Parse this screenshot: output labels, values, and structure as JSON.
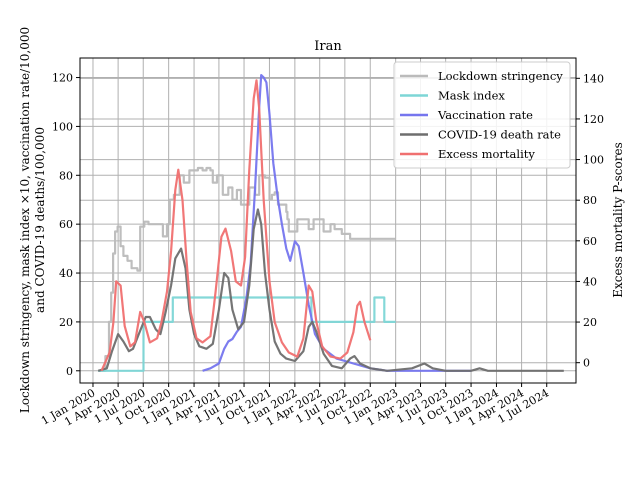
{
  "chart_data": {
    "type": "line",
    "title": "Iran",
    "ylabel_lines": [
      "Lockdown stringency, mask index ×10, vaccination rate/10,000",
      "and COVID-19 deaths/100,000"
    ],
    "y2label": "Excess mortality P-scores",
    "xlabel": "",
    "grid": true,
    "legend_position": "top-right",
    "xlim": [
      "2019-11-15",
      "2024-10-15"
    ],
    "ylim": [
      -5,
      128
    ],
    "y2lim": [
      -10,
      150
    ],
    "x_ticks": [
      "2020-01-01",
      "2020-04-01",
      "2020-07-01",
      "2020-10-01",
      "2021-01-01",
      "2021-04-01",
      "2021-07-01",
      "2021-10-01",
      "2022-01-01",
      "2022-04-01",
      "2022-07-01",
      "2022-10-01",
      "2023-01-01",
      "2023-04-01",
      "2023-07-01",
      "2023-10-01",
      "2024-01-01",
      "2024-04-01",
      "2024-07-01"
    ],
    "x_tick_labels": [
      "1 Jan 2020",
      "1 Apr 2020",
      "1 Jul 2020",
      "1 Oct 2020",
      "1 Jan 2021",
      "1 Apr 2021",
      "1 Jul 2021",
      "1 Oct 2021",
      "1 Jan 2022",
      "1 Apr 2022",
      "1 Jul 2022",
      "1 Oct 2022",
      "1 Jan 2023",
      "1 Apr 2023",
      "1 Jul 2023",
      "1 Oct 2023",
      "1 Jan 2024",
      "1 Apr 2024",
      "1 Jul 2024"
    ],
    "y_ticks": [
      0,
      20,
      40,
      60,
      80,
      100,
      120
    ],
    "y2_ticks": [
      0,
      20,
      40,
      60,
      80,
      100,
      120,
      140
    ],
    "series": [
      {
        "name": "Lockdown stringency",
        "color": "#bbbbbb",
        "axis": "left",
        "step": true,
        "points": [
          [
            "2020-01-20",
            0
          ],
          [
            "2020-02-15",
            6
          ],
          [
            "2020-02-28",
            20
          ],
          [
            "2020-03-07",
            32
          ],
          [
            "2020-03-14",
            48
          ],
          [
            "2020-03-21",
            57
          ],
          [
            "2020-03-30",
            59
          ],
          [
            "2020-04-10",
            51
          ],
          [
            "2020-04-20",
            47
          ],
          [
            "2020-05-05",
            45
          ],
          [
            "2020-05-20",
            42
          ],
          [
            "2020-06-10",
            41
          ],
          [
            "2020-06-20",
            59
          ],
          [
            "2020-07-05",
            61
          ],
          [
            "2020-07-20",
            60
          ],
          [
            "2020-08-20",
            60
          ],
          [
            "2020-09-10",
            55
          ],
          [
            "2020-09-25",
            60
          ],
          [
            "2020-10-05",
            70
          ],
          [
            "2020-10-20",
            72
          ],
          [
            "2020-11-10",
            80
          ],
          [
            "2020-11-25",
            77
          ],
          [
            "2020-12-15",
            82
          ],
          [
            "2021-01-15",
            83
          ],
          [
            "2021-02-01",
            82
          ],
          [
            "2021-02-15",
            83
          ],
          [
            "2021-03-01",
            82
          ],
          [
            "2021-03-10",
            77
          ],
          [
            "2021-03-25",
            80
          ],
          [
            "2021-04-15",
            72
          ],
          [
            "2021-05-05",
            75
          ],
          [
            "2021-05-20",
            70
          ],
          [
            "2021-06-05",
            74
          ],
          [
            "2021-06-20",
            68
          ],
          [
            "2021-07-20",
            75
          ],
          [
            "2021-08-10",
            72
          ],
          [
            "2021-08-25",
            80
          ],
          [
            "2021-09-15",
            79
          ],
          [
            "2021-10-01",
            70
          ],
          [
            "2021-10-10",
            72
          ],
          [
            "2021-10-20",
            73
          ],
          [
            "2021-11-01",
            68
          ],
          [
            "2021-12-01",
            65
          ],
          [
            "2021-12-05",
            62
          ],
          [
            "2021-12-10",
            57
          ],
          [
            "2022-01-10",
            62
          ],
          [
            "2022-02-20",
            58
          ],
          [
            "2022-03-10",
            62
          ],
          [
            "2022-04-15",
            57
          ],
          [
            "2022-05-10",
            60
          ],
          [
            "2022-05-25",
            58
          ],
          [
            "2022-06-20",
            56
          ],
          [
            "2022-07-20",
            54
          ],
          [
            "2023-01-01",
            54
          ]
        ]
      },
      {
        "name": "Mask index",
        "color": "#7dd6d6",
        "axis": "left",
        "step": true,
        "points": [
          [
            "2020-01-20",
            0
          ],
          [
            "2020-07-01",
            0
          ],
          [
            "2020-07-02",
            20
          ],
          [
            "2020-10-15",
            20
          ],
          [
            "2020-10-16",
            30
          ],
          [
            "2022-03-01",
            30
          ],
          [
            "2022-03-02",
            20
          ],
          [
            "2022-10-15",
            20
          ],
          [
            "2022-10-16",
            30
          ],
          [
            "2022-11-20",
            30
          ],
          [
            "2022-11-21",
            20
          ],
          [
            "2023-01-01",
            20
          ]
        ]
      },
      {
        "name": "Vaccination rate",
        "color": "#7575ee",
        "axis": "left",
        "step": false,
        "points": [
          [
            "2021-02-01",
            0
          ],
          [
            "2021-03-01",
            1
          ],
          [
            "2021-04-01",
            3
          ],
          [
            "2021-04-20",
            9
          ],
          [
            "2021-05-05",
            12
          ],
          [
            "2021-05-20",
            13
          ],
          [
            "2021-06-05",
            16
          ],
          [
            "2021-06-20",
            18
          ],
          [
            "2021-07-10",
            30
          ],
          [
            "2021-07-25",
            44
          ],
          [
            "2021-08-10",
            75
          ],
          [
            "2021-08-25",
            108
          ],
          [
            "2021-09-01",
            121
          ],
          [
            "2021-09-10",
            120
          ],
          [
            "2021-09-20",
            118
          ],
          [
            "2021-10-01",
            105
          ],
          [
            "2021-10-15",
            85
          ],
          [
            "2021-11-01",
            70
          ],
          [
            "2021-11-15",
            60
          ],
          [
            "2021-12-01",
            50
          ],
          [
            "2021-12-15",
            45
          ],
          [
            "2022-01-01",
            53
          ],
          [
            "2022-01-15",
            51
          ],
          [
            "2022-02-01",
            40
          ],
          [
            "2022-02-20",
            27
          ],
          [
            "2022-03-15",
            15
          ],
          [
            "2022-04-15",
            9
          ],
          [
            "2022-06-01",
            5
          ],
          [
            "2022-08-01",
            3
          ],
          [
            "2022-10-01",
            1
          ],
          [
            "2022-12-01",
            0
          ],
          [
            "2023-06-01",
            0
          ],
          [
            "2023-10-01",
            0
          ]
        ]
      },
      {
        "name": "COVID-19 death rate",
        "color": "#6e6e6e",
        "axis": "left",
        "step": false,
        "points": [
          [
            "2020-01-20",
            0
          ],
          [
            "2020-02-20",
            1
          ],
          [
            "2020-03-10",
            8
          ],
          [
            "2020-04-01",
            15
          ],
          [
            "2020-04-20",
            12
          ],
          [
            "2020-05-10",
            8
          ],
          [
            "2020-05-25",
            9
          ],
          [
            "2020-06-15",
            15
          ],
          [
            "2020-07-10",
            22
          ],
          [
            "2020-07-25",
            22
          ],
          [
            "2020-08-15",
            17
          ],
          [
            "2020-09-01",
            15
          ],
          [
            "2020-09-20",
            24
          ],
          [
            "2020-10-10",
            35
          ],
          [
            "2020-10-25",
            46
          ],
          [
            "2020-11-15",
            50
          ],
          [
            "2020-12-01",
            42
          ],
          [
            "2020-12-15",
            25
          ],
          [
            "2021-01-01",
            15
          ],
          [
            "2021-01-20",
            10
          ],
          [
            "2021-02-15",
            9
          ],
          [
            "2021-03-10",
            11
          ],
          [
            "2021-04-01",
            25
          ],
          [
            "2021-04-20",
            40
          ],
          [
            "2021-05-05",
            38
          ],
          [
            "2021-05-20",
            25
          ],
          [
            "2021-06-10",
            17
          ],
          [
            "2021-07-01",
            20
          ],
          [
            "2021-07-20",
            35
          ],
          [
            "2021-08-05",
            58
          ],
          [
            "2021-08-20",
            66
          ],
          [
            "2021-09-01",
            60
          ],
          [
            "2021-09-15",
            40
          ],
          [
            "2021-10-01",
            25
          ],
          [
            "2021-10-20",
            12
          ],
          [
            "2021-11-10",
            7
          ],
          [
            "2021-12-01",
            5
          ],
          [
            "2022-01-01",
            4
          ],
          [
            "2022-02-01",
            8
          ],
          [
            "2022-02-20",
            18
          ],
          [
            "2022-03-05",
            20
          ],
          [
            "2022-03-20",
            16
          ],
          [
            "2022-04-15",
            7
          ],
          [
            "2022-05-15",
            2
          ],
          [
            "2022-06-20",
            1
          ],
          [
            "2022-07-20",
            5
          ],
          [
            "2022-08-05",
            6
          ],
          [
            "2022-08-25",
            3
          ],
          [
            "2022-10-01",
            1
          ],
          [
            "2022-12-01",
            0
          ],
          [
            "2023-03-01",
            1
          ],
          [
            "2023-04-15",
            3
          ],
          [
            "2023-05-15",
            1
          ],
          [
            "2023-07-01",
            0
          ],
          [
            "2023-10-01",
            0
          ],
          [
            "2023-11-01",
            1
          ],
          [
            "2023-12-01",
            0
          ],
          [
            "2024-04-01",
            0
          ],
          [
            "2024-09-01",
            0
          ]
        ]
      },
      {
        "name": "Excess mortality",
        "color": "#f07070",
        "axis": "right",
        "step": false,
        "points": [
          [
            "2020-02-01",
            -4
          ],
          [
            "2020-03-01",
            5
          ],
          [
            "2020-03-15",
            20
          ],
          [
            "2020-03-25",
            40
          ],
          [
            "2020-04-10",
            38
          ],
          [
            "2020-04-25",
            18
          ],
          [
            "2020-05-15",
            8
          ],
          [
            "2020-06-01",
            10
          ],
          [
            "2020-06-20",
            25
          ],
          [
            "2020-07-05",
            20
          ],
          [
            "2020-07-25",
            10
          ],
          [
            "2020-08-20",
            12
          ],
          [
            "2020-09-05",
            20
          ],
          [
            "2020-09-25",
            35
          ],
          [
            "2020-10-10",
            55
          ],
          [
            "2020-10-25",
            85
          ],
          [
            "2020-11-05",
            95
          ],
          [
            "2020-11-20",
            80
          ],
          [
            "2020-12-05",
            50
          ],
          [
            "2020-12-20",
            25
          ],
          [
            "2021-01-10",
            12
          ],
          [
            "2021-02-01",
            10
          ],
          [
            "2021-03-01",
            13
          ],
          [
            "2021-03-20",
            35
          ],
          [
            "2021-04-10",
            62
          ],
          [
            "2021-04-25",
            66
          ],
          [
            "2021-05-15",
            55
          ],
          [
            "2021-06-01",
            40
          ],
          [
            "2021-06-20",
            38
          ],
          [
            "2021-07-05",
            52
          ],
          [
            "2021-07-20",
            95
          ],
          [
            "2021-08-05",
            130
          ],
          [
            "2021-08-15",
            139
          ],
          [
            "2021-08-25",
            125
          ],
          [
            "2021-09-10",
            80
          ],
          [
            "2021-10-01",
            40
          ],
          [
            "2021-10-20",
            20
          ],
          [
            "2021-11-15",
            10
          ],
          [
            "2021-12-10",
            5
          ],
          [
            "2022-01-10",
            3
          ],
          [
            "2022-02-01",
            12
          ],
          [
            "2022-02-20",
            38
          ],
          [
            "2022-03-05",
            35
          ],
          [
            "2022-03-20",
            20
          ],
          [
            "2022-04-10",
            8
          ],
          [
            "2022-05-10",
            3
          ],
          [
            "2022-06-15",
            2
          ],
          [
            "2022-07-10",
            5
          ],
          [
            "2022-08-01",
            15
          ],
          [
            "2022-08-15",
            28
          ],
          [
            "2022-08-25",
            30
          ],
          [
            "2022-09-10",
            20
          ],
          [
            "2022-10-01",
            11
          ]
        ]
      }
    ]
  }
}
